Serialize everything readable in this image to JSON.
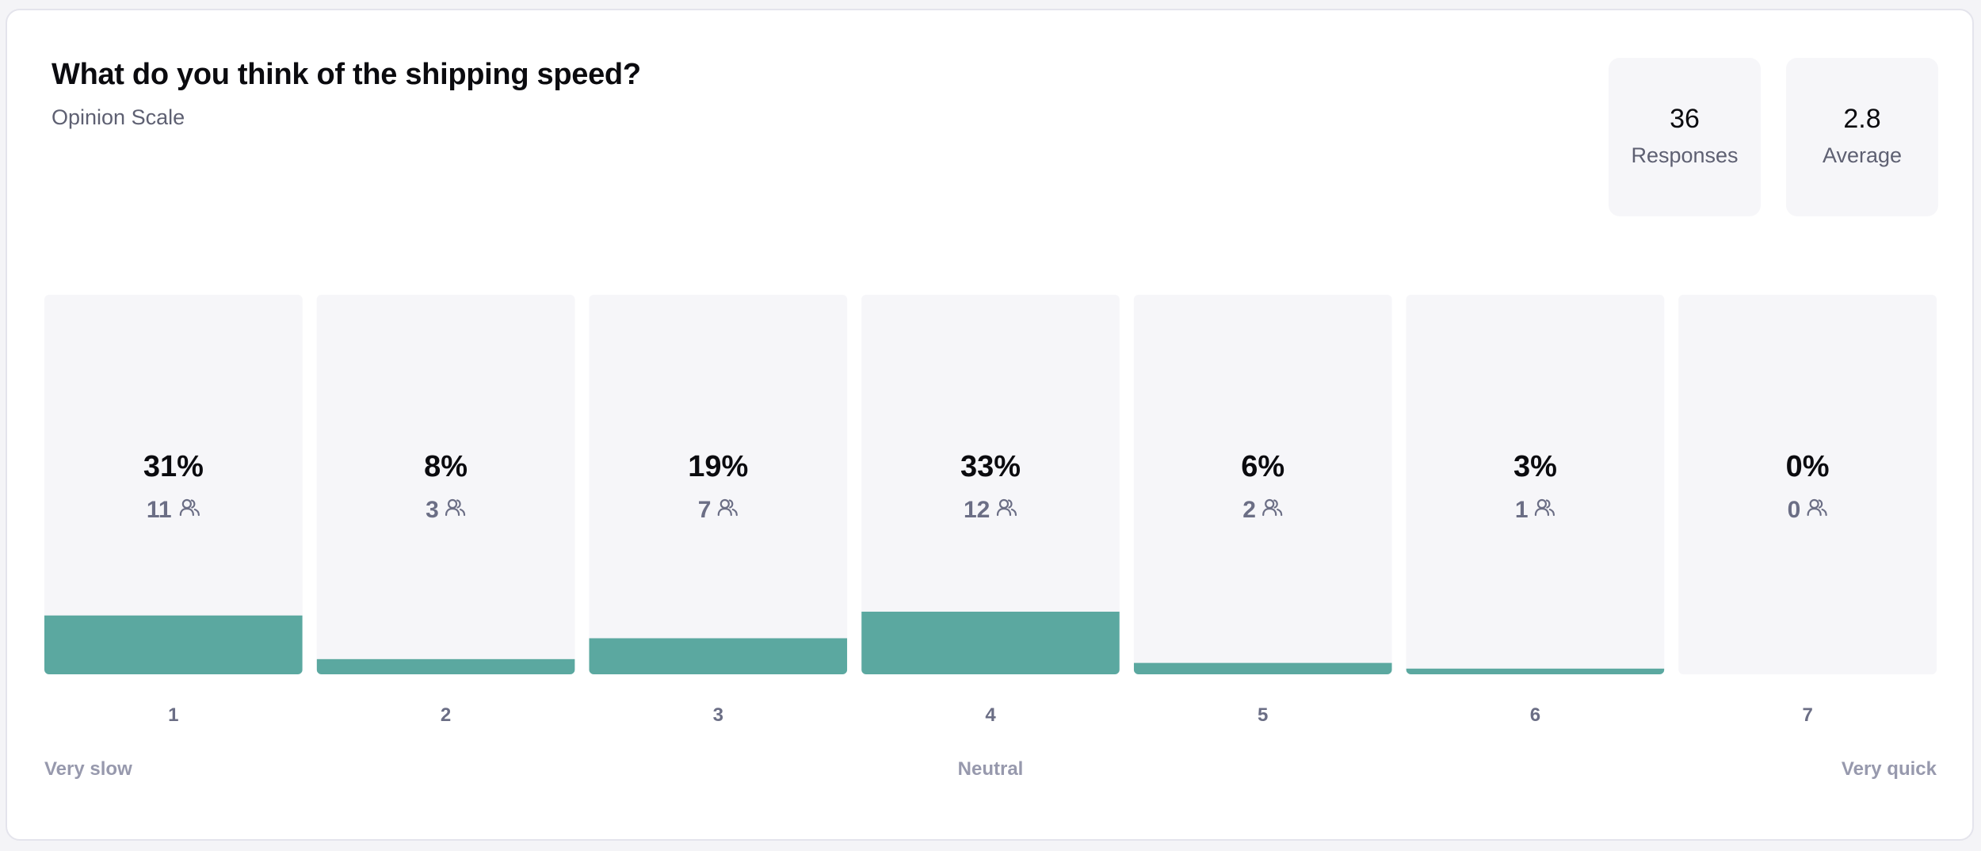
{
  "header": {
    "title": "What do you think of the shipping speed?",
    "subtitle": "Opinion Scale"
  },
  "stats": {
    "responses_value": "36",
    "responses_label": "Responses",
    "average_value": "2.8",
    "average_label": "Average"
  },
  "colors": {
    "bar": "#5ba8a0",
    "bar_background": "#f6f6f9"
  },
  "chart_data": {
    "type": "bar",
    "categories": [
      "1",
      "2",
      "3",
      "4",
      "5",
      "6",
      "7"
    ],
    "values": [
      31,
      8,
      19,
      33,
      6,
      3,
      0
    ],
    "percent_labels": [
      "31%",
      "8%",
      "19%",
      "33%",
      "6%",
      "3%",
      "0%"
    ],
    "counts": [
      11,
      3,
      7,
      12,
      2,
      1,
      0
    ],
    "count_icon": "users-icon",
    "ylim": [
      0,
      100
    ],
    "scale_labels": {
      "low": "Very slow",
      "mid": "Neutral",
      "high": "Very quick"
    },
    "grid": false,
    "legend": "none"
  }
}
